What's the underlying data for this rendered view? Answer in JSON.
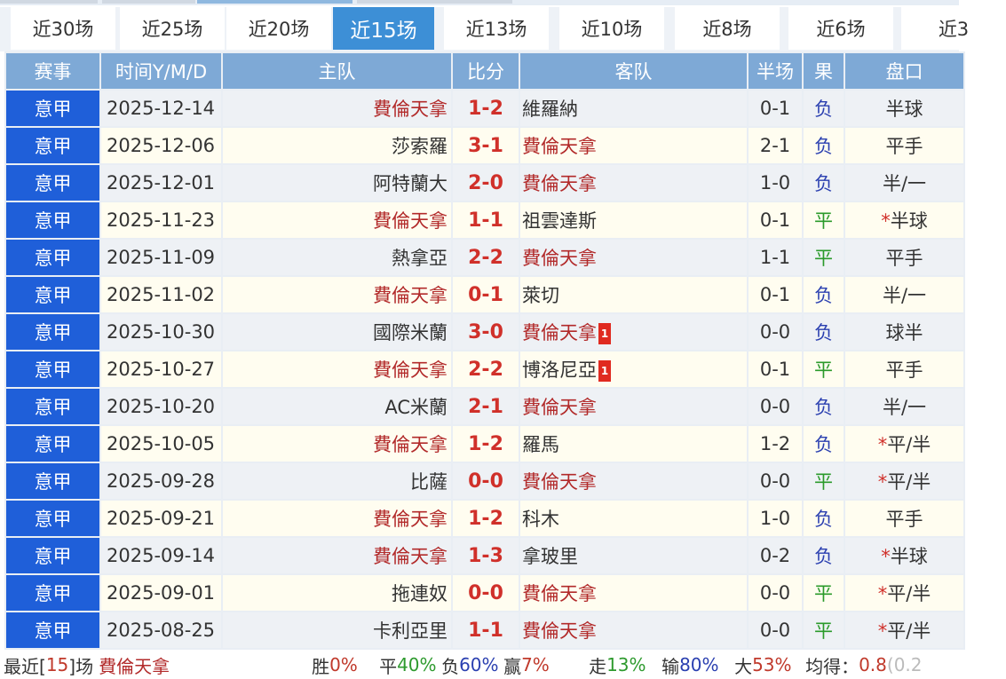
{
  "tabs": [
    {
      "label": "近30场"
    },
    {
      "label": "近25场"
    },
    {
      "label": "近20场"
    },
    {
      "label": "近15场",
      "active": true
    },
    {
      "label": "近13场"
    },
    {
      "label": "近10场"
    },
    {
      "label": "近8场"
    },
    {
      "label": "近6场"
    },
    {
      "label": "近3"
    }
  ],
  "headers": [
    "赛事",
    "时间Y/M/D",
    "主队",
    "比分",
    "客队",
    "半场",
    "果",
    "盘口"
  ],
  "focus_team": "費倫天拿",
  "rows": [
    {
      "league": "意甲",
      "date": "2025-12-14",
      "home": "費倫天拿",
      "score": "1-2",
      "away": "維羅納",
      "away_red": "",
      "half": "0-1",
      "result": "负",
      "handicap": "半球",
      "star": ""
    },
    {
      "league": "意甲",
      "date": "2025-12-06",
      "home": "莎索羅",
      "score": "3-1",
      "away": "費倫天拿",
      "away_red": "",
      "half": "2-1",
      "result": "负",
      "handicap": "平手",
      "star": ""
    },
    {
      "league": "意甲",
      "date": "2025-12-01",
      "home": "阿特蘭大",
      "score": "2-0",
      "away": "費倫天拿",
      "away_red": "",
      "half": "1-0",
      "result": "负",
      "handicap": "半/一",
      "star": ""
    },
    {
      "league": "意甲",
      "date": "2025-11-23",
      "home": "費倫天拿",
      "score": "1-1",
      "away": "祖雲達斯",
      "away_red": "",
      "half": "0-1",
      "result": "平",
      "handicap": "半球",
      "star": "*"
    },
    {
      "league": "意甲",
      "date": "2025-11-09",
      "home": "熱拿亞",
      "score": "2-2",
      "away": "費倫天拿",
      "away_red": "",
      "half": "1-1",
      "result": "平",
      "handicap": "平手",
      "star": ""
    },
    {
      "league": "意甲",
      "date": "2025-11-02",
      "home": "費倫天拿",
      "score": "0-1",
      "away": "萊切",
      "away_red": "",
      "half": "0-1",
      "result": "负",
      "handicap": "半/一",
      "star": ""
    },
    {
      "league": "意甲",
      "date": "2025-10-30",
      "home": "國際米蘭",
      "score": "3-0",
      "away": "費倫天拿",
      "away_red": "1",
      "half": "0-0",
      "result": "负",
      "handicap": "球半",
      "star": ""
    },
    {
      "league": "意甲",
      "date": "2025-10-27",
      "home": "費倫天拿",
      "score": "2-2",
      "away": "博洛尼亞",
      "away_red": "1",
      "half": "0-1",
      "result": "平",
      "handicap": "平手",
      "star": ""
    },
    {
      "league": "意甲",
      "date": "2025-10-20",
      "home": "AC米蘭",
      "score": "2-1",
      "away": "費倫天拿",
      "away_red": "",
      "half": "0-0",
      "result": "负",
      "handicap": "半/一",
      "star": ""
    },
    {
      "league": "意甲",
      "date": "2025-10-05",
      "home": "費倫天拿",
      "score": "1-2",
      "away": "羅馬",
      "away_red": "",
      "half": "1-2",
      "result": "负",
      "handicap": "平/半",
      "star": "*"
    },
    {
      "league": "意甲",
      "date": "2025-09-28",
      "home": "比薩",
      "score": "0-0",
      "away": "費倫天拿",
      "away_red": "",
      "half": "0-0",
      "result": "平",
      "handicap": "平/半",
      "star": "*"
    },
    {
      "league": "意甲",
      "date": "2025-09-21",
      "home": "費倫天拿",
      "score": "1-2",
      "away": "科木",
      "away_red": "",
      "half": "1-0",
      "result": "负",
      "handicap": "平手",
      "star": ""
    },
    {
      "league": "意甲",
      "date": "2025-09-14",
      "home": "費倫天拿",
      "score": "1-3",
      "away": "拿玻里",
      "away_red": "",
      "half": "0-2",
      "result": "负",
      "handicap": "半球",
      "star": "*"
    },
    {
      "league": "意甲",
      "date": "2025-09-01",
      "home": "拖連奴",
      "score": "0-0",
      "away": "費倫天拿",
      "away_red": "",
      "half": "0-0",
      "result": "平",
      "handicap": "平/半",
      "star": "*"
    },
    {
      "league": "意甲",
      "date": "2025-08-25",
      "home": "卡利亞里",
      "score": "1-1",
      "away": "費倫天拿",
      "away_red": "",
      "half": "0-0",
      "result": "平",
      "handicap": "平/半",
      "star": "*"
    }
  ],
  "footer": {
    "prefix": "最近[",
    "count": "15",
    "suffix": "]场",
    "team": "費倫天拿",
    "win_label": "胜",
    "win": "0%",
    "draw_label": "平",
    "draw": "40%",
    "loss_label": "负",
    "loss": "60%",
    "ying_label": "赢",
    "ying": "7%",
    "zou_label": "走",
    "zou": "13%",
    "shu_label": "输",
    "shu": "80%",
    "da_label": "大",
    "da": "53%",
    "avg_label": "均得：",
    "avg": "0.8",
    "avg_extra": "(0.2"
  }
}
